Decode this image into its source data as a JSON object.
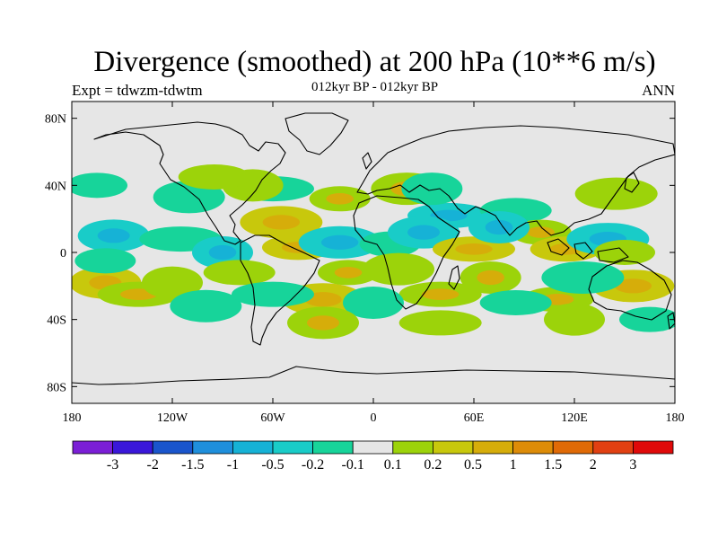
{
  "header": {
    "title": "Divergence (smoothed) at 200 hPa (10**6 m/s)",
    "subtitle": "012kyr BP - 012kyr BP",
    "left_label": "Expt = tdwzm-tdwtm",
    "right_label": "ANN"
  },
  "axes": {
    "x_ticks": [
      {
        "value": -180,
        "label": "180"
      },
      {
        "value": -120,
        "label": "120W"
      },
      {
        "value": -60,
        "label": "60W"
      },
      {
        "value": 0,
        "label": "0"
      },
      {
        "value": 60,
        "label": "60E"
      },
      {
        "value": 120,
        "label": "120E"
      },
      {
        "value": 180,
        "label": "180"
      }
    ],
    "y_ticks": [
      {
        "value": 80,
        "label": "80N"
      },
      {
        "value": 40,
        "label": "40N"
      },
      {
        "value": 0,
        "label": "0"
      },
      {
        "value": -40,
        "label": "40S"
      },
      {
        "value": -80,
        "label": "80S"
      }
    ],
    "xlim": [
      -180,
      180
    ],
    "ylim": [
      -90,
      90
    ]
  },
  "colorbar": {
    "colors": [
      "#7b1fd6",
      "#3a17d9",
      "#1a55cc",
      "#1f8fdc",
      "#16b2d6",
      "#19ccc8",
      "#17d49a",
      "#e6e6e6",
      "#9cd30a",
      "#c8c80c",
      "#d6ad0a",
      "#dd8c08",
      "#e06a06",
      "#e14012",
      "#e00a0a"
    ],
    "labels": [
      "-3",
      "-2",
      "-1.5",
      "-1",
      "-0.5",
      "-0.2",
      "-0.1",
      "0.1",
      "0.2",
      "0.5",
      "1",
      "1.5",
      "2",
      "3"
    ]
  },
  "chart_data": {
    "type": "heatmap",
    "projection": "cylindrical equidistant",
    "levels": [
      -3,
      -2,
      -1.5,
      -1,
      -0.5,
      -0.2,
      -0.1,
      0.1,
      0.2,
      0.5,
      1,
      1.5,
      2,
      3
    ],
    "units": "10**6 m/s",
    "background_color": "#e6e6e6",
    "anomalies": [
      {
        "lon": -165,
        "lat": 40,
        "value": -0.15
      },
      {
        "lon": -110,
        "lat": 33,
        "value": -0.15
      },
      {
        "lon": -60,
        "lat": 38,
        "value": -0.15
      },
      {
        "lon": -72,
        "lat": 40,
        "value": 0.15
      },
      {
        "lon": -95,
        "lat": 45,
        "value": 0.15
      },
      {
        "lon": -55,
        "lat": 18,
        "value": 0.3
      },
      {
        "lon": -20,
        "lat": 32,
        "value": 0.2
      },
      {
        "lon": 20,
        "lat": 38,
        "value": 0.2
      },
      {
        "lon": 45,
        "lat": 22,
        "value": -0.2
      },
      {
        "lon": 35,
        "lat": 38,
        "value": -0.15
      },
      {
        "lon": 85,
        "lat": 25,
        "value": -0.15
      },
      {
        "lon": 145,
        "lat": 35,
        "value": 0.15
      },
      {
        "lon": 100,
        "lat": 12,
        "value": 0.2
      },
      {
        "lon": -155,
        "lat": 10,
        "value": -0.2
      },
      {
        "lon": -115,
        "lat": 8,
        "value": -0.15
      },
      {
        "lon": -90,
        "lat": 0,
        "value": -0.3
      },
      {
        "lon": -45,
        "lat": 3,
        "value": 0.3
      },
      {
        "lon": -20,
        "lat": 6,
        "value": -0.2
      },
      {
        "lon": 10,
        "lat": 5,
        "value": -0.15
      },
      {
        "lon": 30,
        "lat": 12,
        "value": -0.2
      },
      {
        "lon": 60,
        "lat": 2,
        "value": 0.3
      },
      {
        "lon": 75,
        "lat": 15,
        "value": -0.3
      },
      {
        "lon": 115,
        "lat": 2,
        "value": 0.25
      },
      {
        "lon": 140,
        "lat": 8,
        "value": -0.2
      },
      {
        "lon": 150,
        "lat": 0,
        "value": 0.15
      },
      {
        "lon": -160,
        "lat": -18,
        "value": 0.3
      },
      {
        "lon": -140,
        "lat": -25,
        "value": 0.2
      },
      {
        "lon": -120,
        "lat": -18,
        "value": 0.15
      },
      {
        "lon": -80,
        "lat": -12,
        "value": 0.15
      },
      {
        "lon": -30,
        "lat": -28,
        "value": 0.25
      },
      {
        "lon": -15,
        "lat": -12,
        "value": 0.2
      },
      {
        "lon": 15,
        "lat": -10,
        "value": 0.15
      },
      {
        "lon": 40,
        "lat": -25,
        "value": 0.2
      },
      {
        "lon": 70,
        "lat": -15,
        "value": 0.2
      },
      {
        "lon": 110,
        "lat": -28,
        "value": 0.2
      },
      {
        "lon": 155,
        "lat": -20,
        "value": 0.3
      },
      {
        "lon": -160,
        "lat": -5,
        "value": -0.15
      },
      {
        "lon": -100,
        "lat": -32,
        "value": -0.15
      },
      {
        "lon": -60,
        "lat": -25,
        "value": -0.15
      },
      {
        "lon": 0,
        "lat": -30,
        "value": -0.15
      },
      {
        "lon": 85,
        "lat": -30,
        "value": -0.15
      },
      {
        "lon": 125,
        "lat": -15,
        "value": -0.15
      },
      {
        "lon": 165,
        "lat": -40,
        "value": -0.15
      },
      {
        "lon": -30,
        "lat": -42,
        "value": 0.2
      },
      {
        "lon": 40,
        "lat": -42,
        "value": 0.15
      },
      {
        "lon": 120,
        "lat": -40,
        "value": 0.15
      }
    ]
  }
}
